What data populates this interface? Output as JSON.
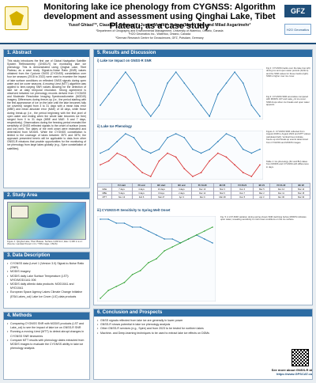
{
  "header": {
    "title": "Monitoring lake ice phenology from CYGNSS: Algorithm development and assessment using Qinghai Lake, Tibet Plateau, as a case study",
    "authors": "Yusof Ghiasi¹ʹ², Claude R. Duguay¹ʹ², Justin Murfitt¹, Yuhao (Mark) Wu², and Milad Asgarimehr³",
    "affiliations": [
      "¹Department of Geography and Environmental Management, University of Waterloo, Ontario, Canada",
      "²H2O Geomatics Inc., Waterloo, Ontario, Canada",
      "³German Research Centre for Geosciences, GFZ, Potsdam, Germany"
    ],
    "logo_right_text": "GFZ",
    "logo_right_sub": "H2O Geomatics"
  },
  "sections": {
    "abstract": {
      "title": "1. Abstract",
      "text": "This study introduces the first use of Global Navigation Satellite System Reflectometry (GNSS-R) for monitoring lake ice phenology. This is demonstrated using Qinghai Lake, Tibet Plateau, as a case study. Signal-to-Noise Ratio (SNR) values obtained from the Cyclone GNSS (CYGNSS) constellation over four ice seasons (2018 to 2022) were used to examine the impact of lake surface conditions on reflected GNSS signals during open water and ice cover seasons. A moving t-test (MTT) algorithm was applied to time-varying SNR values allowing for the detection of lake ice at daily temporal resolution. Strong agreement is observed between ice phenology records derived from CYGNSS and Moderate Resolution Imaging Spectroradiometer (MODIS) imagery. Differences during freeze-up (i.e., the period starting with the first appearance of ice on the lake until the lake becomes fully ice covered) ranged from 3 to 31 days with a mean bias error (MBE) and mean absolute error (MAE) of 18 days, while those during break-up (i.e., the period beginning with the first pixel of open water and ending when the whole lake becomes ice free) ranged from 0 to 31 days (MBE and MAE: 5 and 7 days, respectively). Observations during the freezing period revealed the sensitivity of GNSS reflected signals to the onset of surface (snow and ice) melt. The dates of the melt onset were estimated and determined from MODIS. While the CYGNSS constellation is limited to the coverage of lakes between 35°S and 38°N, the approach presented herein will be applicable to data from other GNSS-R missions that provide opportunities for the monitoring of ice phenology from large lakes globally (e.g., Spire constellation of satellites)."
    },
    "study_area": {
      "title": "2. Study Area",
      "caption": "Figure 1. Qinghai Lake, Tibet Plateau. Surface 4,294 km², Elev. 3,196 m a.s.l. (Source: Landsat 8 level 1 C1 / TRS image, USGS)"
    },
    "data": {
      "title": "3. Data Description",
      "items": [
        "CYGNSS data (Level 1 (Version 3.0) Signal-to-Noise Ratio (SNR)",
        "MODIS imagery",
        "MODIS daily Lake Surface Temperature (LST): MYD/MOD11A1 006",
        "MODIS daily albedo data products: MOD10A1 and MYD10A1",
        "European Space Agency Lakes Climate Change Initiative (ESA Lakes_cci) Lake Ice Cover (LIC) data products"
      ]
    },
    "methods": {
      "title": "4. Methods",
      "items": [
        "Comparing CYGNSS SNR with MODIS products (LST and Lake_cci) to see the impact of lake ice on GNSS-R SNR",
        "Running a moving t-test (MTT) to detect abrupt changes in CYGNSS SNR timeseries",
        "Compare MTT results with phenology dates extracted from MODIS images to evaluate the CYGNSS ability in lake ice phenology analysis"
      ]
    },
    "results": {
      "title": "5. Results and Discussion",
      "sub1": "i) Lake Ice Impact on GNSS-R SNR",
      "fig2_note": "Fig 2: CYGNSS tracks over the lake (top left) during ice and open water periods (bottom) and the SNR values for these tracks (right). SNR is higher over ice cover.",
      "fig3_note": "Fig 3: CYGNSS SNR anomalies compared with MODIS LST and Lake_cci ice cover. SNR drops when ice breaks and open water appears.",
      "sub2": "ii) Lake Ice Phenology",
      "fig4_note": "Figure 4: CYGNSS SNR collected from August 2018 to August 2022 and MTT values calculated (left). Vertical lines indicate freeze-up and break-up events determined from CYGNSS and MODIS images.",
      "fig5_note": "Table 1: Ice phenology (FU and BU) dates from MODIS and CYGNSS with differences in days.",
      "sub3": "iii) CYGNSS-R Sensitivity to Spring Melt Onset",
      "fig6_note": "Fig. 5: A LST-SNR variation during spring shows SNR declining before MODIS indicates open water, revealing sensitivity to melt onset conditions on the ice surface."
    },
    "conclusion": {
      "title": "6. Conclusion and Prospects",
      "items": [
        "GNSS signals reflected from lake ice are generally in lower power",
        "GNSS-R shows potential in lake ice phenology analysis",
        "Other GNSS-R services (e.g., Spire) and from 2023 to be tested for northern lakes",
        "Machine- and Deep-learning techniques to be used to extract lake ice effects on DDMs"
      ]
    },
    "footer": {
      "more_text": "See more about GNSS-R at",
      "link": "https://www.GPSCAT.ca"
    }
  },
  "table": {
    "headers": [
      "",
      "FU start",
      "FU end",
      "BU start",
      "BU end",
      "FU 19-20",
      "BU 20",
      "FU 20-21",
      "BU 21",
      "FU 21-22",
      "BU 22"
    ],
    "rows": [
      [
        "MAE",
        "7 days",
        "4 days",
        "10 days",
        "4 days",
        "Dec 13",
        "Mar 3",
        "Dec 4",
        "Mar 5",
        "Dec 14",
        "Mar 14"
      ],
      [
        "MBE",
        "5 days",
        "3 days",
        "8 days",
        "2 days",
        "Dec 12",
        "Mar 6",
        "Dec 7",
        "Mar 2",
        "Dec 11",
        "Mar 15"
      ],
      [
        "MTT",
        "Nov 13",
        "Feb 6",
        "Mar 27",
        "Apr 3",
        "Dec 9",
        "Mar 28",
        "Dec 5",
        "Apr 3",
        "Nov 30",
        "Mar 30"
      ]
    ]
  },
  "chart_data": [
    {
      "type": "line",
      "title": "",
      "series": [
        {
          "name": "SNR",
          "values": [
            6,
            7,
            8,
            9,
            8,
            6,
            5,
            6,
            8,
            9,
            8,
            7,
            6,
            5,
            7,
            8,
            9,
            8,
            6,
            5
          ]
        }
      ]
    },
    {
      "type": "line",
      "title": "",
      "series": [
        {
          "name": "SNR",
          "values": [
            3,
            4,
            6,
            8,
            7,
            4,
            3,
            4,
            7,
            8,
            7,
            4,
            3,
            4,
            6,
            8,
            7,
            4,
            3,
            4
          ]
        },
        {
          "name": "MTT",
          "values": [
            0,
            1,
            3,
            2,
            0,
            -2,
            -3,
            1,
            3,
            2,
            -1,
            -3,
            -2,
            1,
            3,
            2,
            0,
            -2,
            -3,
            0
          ]
        }
      ]
    },
    {
      "type": "line",
      "title": "",
      "series": [
        {
          "name": "SNR",
          "values": [
            8,
            8,
            7,
            7,
            6,
            6,
            5,
            4,
            3,
            3,
            2,
            3,
            4,
            3,
            2
          ]
        },
        {
          "name": "LST",
          "values": [
            -12,
            -10,
            -9,
            -8,
            -6,
            -5,
            -3,
            -2,
            0,
            1,
            2,
            3,
            4,
            5,
            6
          ]
        }
      ]
    }
  ],
  "colors": {
    "panel_title": "#2e6da4",
    "snr": "#1f77b4",
    "mtt": "#d62728",
    "lst": "#2ca02c"
  }
}
